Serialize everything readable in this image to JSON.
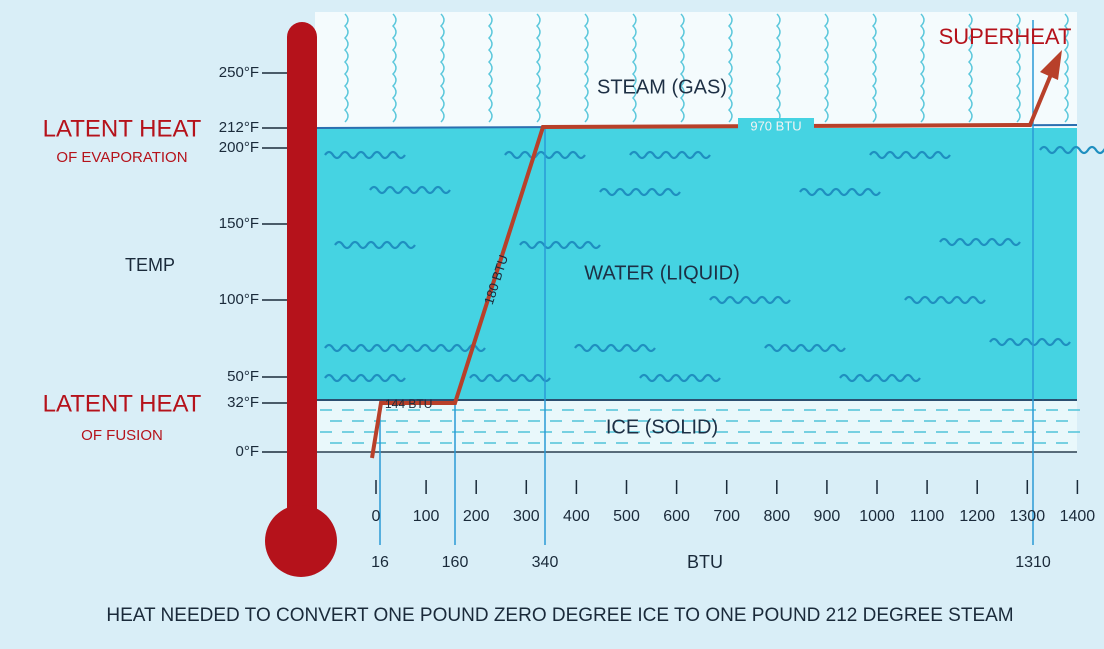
{
  "title": "HEAT NEEDED TO CONVERT ONE POUND ZERO DEGREE ICE TO ONE POUND 212 DEGREE STEAM",
  "superheat": "SUPERHEAT",
  "regions": {
    "steam": "STEAM (GAS)",
    "water": "WATER (LIQUID)",
    "ice": "ICE (SOLID)"
  },
  "latent_heat_evaporation": {
    "title": "LATENT HEAT",
    "subtitle": "OF EVAPORATION"
  },
  "latent_heat_fusion": {
    "title": "LATENT HEAT",
    "subtitle": "OF FUSION"
  },
  "y_axis": {
    "label": "TEMP",
    "ticks": [
      "250°F",
      "212°F",
      "200°F",
      "150°F",
      "100°F",
      "50°F",
      "32°F",
      "0°F"
    ]
  },
  "x_axis": {
    "label": "BTU",
    "ticks": [
      "0",
      "100",
      "200",
      "300",
      "400",
      "500",
      "600",
      "700",
      "800",
      "900",
      "1000",
      "1100",
      "1200",
      "1300",
      "1400"
    ],
    "markers": [
      "16",
      "160",
      "340",
      "1310"
    ]
  },
  "segments": [
    "144 BTU",
    "180 BTU",
    "970 BTU"
  ]
}
